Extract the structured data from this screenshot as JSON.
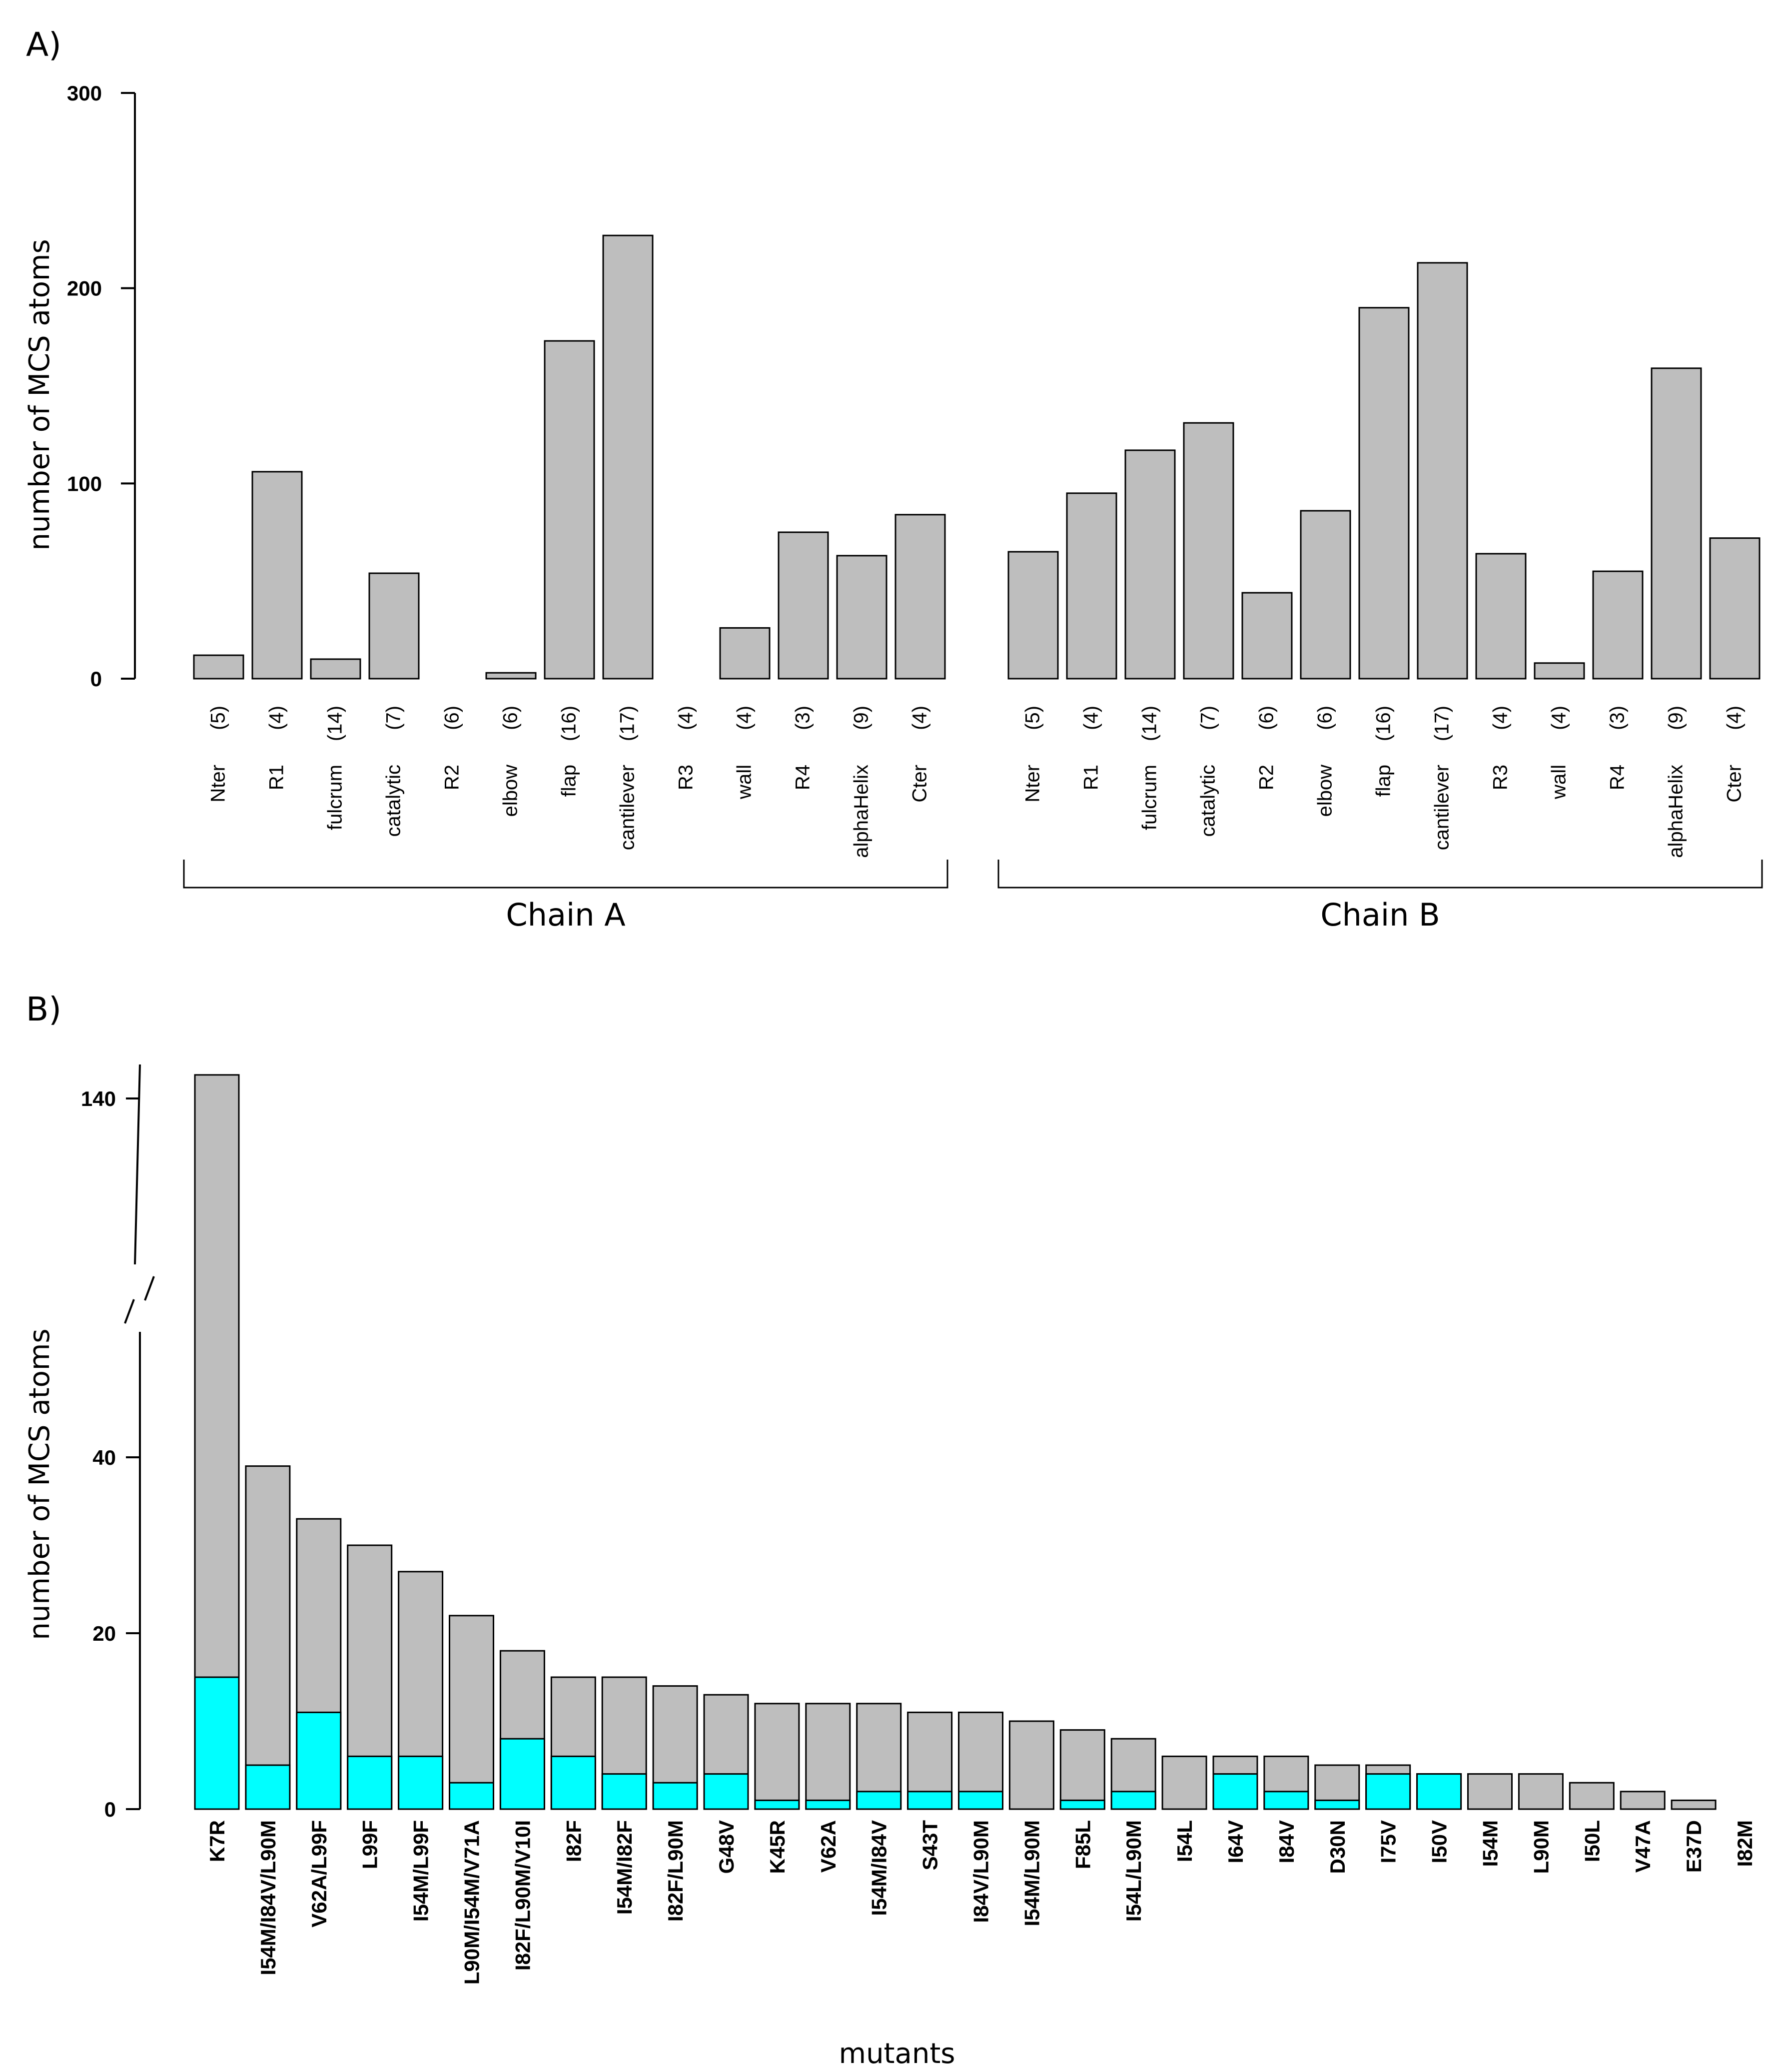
{
  "panel_labels": {
    "a": "A)",
    "b": "B)"
  },
  "chart_data": [
    {
      "type": "bar",
      "ylabel": "number of MCS atoms",
      "xlabel": "",
      "ylim": [
        0,
        300
      ],
      "yticks": [
        0,
        100,
        200,
        300
      ],
      "colors": {
        "bar": "#bebebe",
        "edge": "#000000"
      },
      "groups": [
        {
          "name": "Chain A",
          "categories": [
            "Nter",
            "R1",
            "fulcrum",
            "catalytic",
            "R2",
            "elbow",
            "flap",
            "cantilever",
            "R3",
            "wall",
            "R4",
            "alphaHelix",
            "Cter"
          ],
          "counts": [
            "(5)",
            "(4)",
            "(14)",
            "(7)",
            "(6)",
            "(6)",
            "(16)",
            "(17)",
            "(4)",
            "(4)",
            "(3)",
            "(9)",
            "(4)"
          ],
          "values": [
            12,
            106,
            10,
            54,
            0,
            3,
            173,
            227,
            0,
            26,
            75,
            63,
            84
          ]
        },
        {
          "name": "Chain B",
          "categories": [
            "Nter",
            "R1",
            "fulcrum",
            "catalytic",
            "R2",
            "elbow",
            "flap",
            "cantilever",
            "R3",
            "wall",
            "R4",
            "alphaHelix",
            "Cter"
          ],
          "counts": [
            "(5)",
            "(4)",
            "(14)",
            "(7)",
            "(6)",
            "(6)",
            "(16)",
            "(17)",
            "(4)",
            "(4)",
            "(3)",
            "(9)",
            "(4)"
          ],
          "values": [
            65,
            95,
            117,
            131,
            44,
            86,
            190,
            213,
            64,
            8,
            55,
            159,
            72
          ]
        }
      ]
    },
    {
      "type": "bar",
      "ylabel": "number of MCS atoms",
      "xlabel": "mutants",
      "yticks": [
        0,
        20,
        40,
        140
      ],
      "axis_break": true,
      "colors": {
        "total": "#bebebe",
        "highlight": "#00ffff",
        "edge": "#000000"
      },
      "categories": [
        "K7R",
        "I54M/I84V/L90M",
        "V62A/L99F",
        "L99F",
        "I54M/L99F",
        "L90M/I54M/V71A",
        "I82F/L90M/V10I",
        "I82F",
        "I54M/I82F",
        "I82F/L90M",
        "G48V",
        "K45R",
        "V62A",
        "I54M/I84V",
        "S43T",
        "I84V/L90M",
        "I54M/L90M",
        "F85L",
        "I54L/L90M",
        "I54L",
        "I64V",
        "I84V",
        "D30N",
        "I75V",
        "I50V",
        "I54M",
        "L90M",
        "I50L",
        "V47A",
        "E37D",
        "I82M"
      ],
      "series": [
        {
          "values": [
            149,
            39,
            33,
            30,
            27,
            22,
            18,
            15,
            15,
            14,
            13,
            12,
            12,
            12,
            11,
            11,
            10,
            9,
            8,
            6,
            6,
            6,
            5,
            5,
            4,
            4,
            4,
            3,
            2,
            1,
            0
          ]
        },
        {
          "values": [
            15,
            5,
            11,
            6,
            6,
            3,
            8,
            6,
            4,
            3,
            4,
            1,
            1,
            2,
            2,
            2,
            0,
            1,
            2,
            0,
            4,
            2,
            1,
            4,
            4,
            0,
            0,
            0,
            0,
            0,
            0
          ]
        }
      ]
    }
  ]
}
